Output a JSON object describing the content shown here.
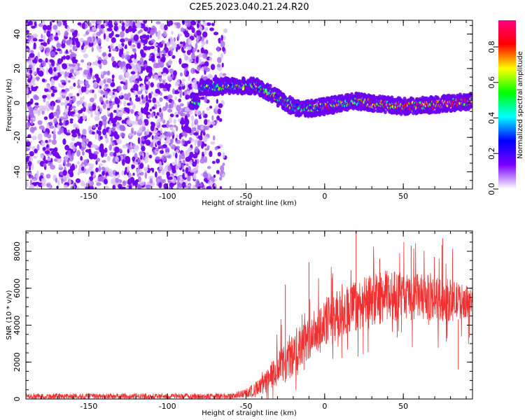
{
  "title": "C2E5.2023.040.21.24.R20",
  "chart_data": [
    {
      "type": "heatmap",
      "xlabel": "Height of straight line (km)",
      "ylabel": "Frequency (Hz)",
      "xlim": [
        -190,
        94
      ],
      "ylim": [
        -50,
        48
      ],
      "xticks": [
        -150,
        -100,
        -50,
        0,
        50
      ],
      "yticks": [
        -40,
        -20,
        0,
        20,
        40
      ],
      "colorbar": {
        "label": "Normalized spectral amplitude",
        "range": [
          0,
          0.95
        ],
        "ticks": [
          0.0,
          0.2,
          0.4,
          0.6,
          0.8
        ],
        "colors": [
          "#ffffff",
          "#7a00ff",
          "#0000ff",
          "#00ffff",
          "#00ff00",
          "#ffff00",
          "#ff0000",
          "#ff007f"
        ]
      },
      "noise_region": {
        "x": [
          -190,
          -63
        ],
        "f": [
          -50,
          48
        ]
      },
      "signal_track": [
        {
          "x": -80,
          "f": 9
        },
        {
          "x": -60,
          "f": 10
        },
        {
          "x": -45,
          "f": 10
        },
        {
          "x": -35,
          "f": 6
        },
        {
          "x": -25,
          "f": 0
        },
        {
          "x": -15,
          "f": -4
        },
        {
          "x": 0,
          "f": -2
        },
        {
          "x": 20,
          "f": 1
        },
        {
          "x": 50,
          "f": -2
        },
        {
          "x": 70,
          "f": -1
        },
        {
          "x": 94,
          "f": 1
        }
      ]
    },
    {
      "type": "line",
      "xlabel": "Height of straight line (km)",
      "ylabel": "SNR (10 * v/v)",
      "xlim": [
        -190,
        94
      ],
      "ylim": [
        0,
        9100
      ],
      "xticks": [
        -150,
        -100,
        -50,
        0,
        50
      ],
      "yticks": [
        0,
        2000,
        4000,
        6000,
        8000
      ],
      "color": "#f03030",
      "envelope": [
        {
          "x": -190,
          "lo": 0,
          "hi": 300
        },
        {
          "x": -60,
          "lo": 0,
          "hi": 300
        },
        {
          "x": -50,
          "lo": 50,
          "hi": 550
        },
        {
          "x": -40,
          "lo": 150,
          "hi": 1200
        },
        {
          "x": -30,
          "lo": 600,
          "hi": 2500
        },
        {
          "x": -20,
          "lo": 1200,
          "hi": 3500
        },
        {
          "x": -10,
          "lo": 2200,
          "hi": 4500
        },
        {
          "x": 0,
          "lo": 2800,
          "hi": 5500
        },
        {
          "x": 10,
          "lo": 3200,
          "hi": 6000
        },
        {
          "x": 20,
          "lo": 3700,
          "hi": 6500
        },
        {
          "x": 40,
          "lo": 4200,
          "hi": 7000
        },
        {
          "x": 60,
          "lo": 4300,
          "hi": 6800
        },
        {
          "x": 80,
          "lo": 4200,
          "hi": 6500
        },
        {
          "x": 94,
          "lo": 4500,
          "hi": 6000
        }
      ],
      "spikes": [
        {
          "x": 20,
          "y": 9100
        },
        {
          "x": -10,
          "y": 7400
        },
        {
          "x": -25,
          "y": 6200
        },
        {
          "x": 5,
          "y": 6800
        },
        {
          "x": 55,
          "y": 8300
        },
        {
          "x": 75,
          "y": 8700
        },
        {
          "x": 85,
          "y": 1600
        },
        {
          "x": 35,
          "y": 7600
        }
      ]
    }
  ]
}
